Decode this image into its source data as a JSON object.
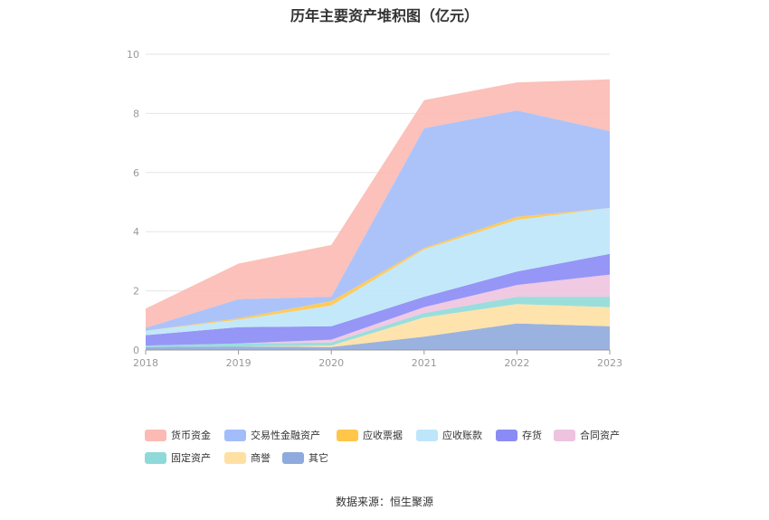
{
  "chart_title": "历年主要资产堆积图（亿元）",
  "source_label": "数据来源：恒生聚源",
  "chart_data": {
    "type": "area",
    "stacked": true,
    "title": "历年主要资产堆积图（亿元）",
    "xlabel": "",
    "ylabel": "",
    "x": [
      "2018",
      "2019",
      "2020",
      "2021",
      "2022",
      "2023"
    ],
    "ylim": [
      0,
      10
    ],
    "yticks": [
      "0",
      "2",
      "4",
      "6",
      "8",
      "10"
    ],
    "grid": true,
    "legend_position": "bottom",
    "series": [
      {
        "name": "其它",
        "color": "#8faadc",
        "values": [
          0.1,
          0.12,
          0.1,
          0.45,
          0.9,
          0.8
        ]
      },
      {
        "name": "商誉",
        "color": "#ffe0a3",
        "values": [
          0.0,
          0.0,
          0.05,
          0.65,
          0.65,
          0.65
        ]
      },
      {
        "name": "固定资产",
        "color": "#8fdad8",
        "values": [
          0.05,
          0.1,
          0.1,
          0.15,
          0.25,
          0.35
        ]
      },
      {
        "name": "合同资产",
        "color": "#eec3e0",
        "values": [
          0.0,
          0.0,
          0.1,
          0.2,
          0.4,
          0.75
        ]
      },
      {
        "name": "存货",
        "color": "#8b8bf5",
        "values": [
          0.35,
          0.55,
          0.45,
          0.35,
          0.45,
          0.7
        ]
      },
      {
        "name": "应收账款",
        "color": "#bde6fa",
        "values": [
          0.15,
          0.25,
          0.7,
          1.6,
          1.75,
          1.55
        ]
      },
      {
        "name": "应收票据",
        "color": "#ffc64a",
        "values": [
          0.0,
          0.05,
          0.15,
          0.05,
          0.1,
          0.0
        ]
      },
      {
        "name": "交易性金融资产",
        "color": "#a3bdfa",
        "values": [
          0.1,
          0.65,
          0.15,
          4.05,
          3.6,
          2.6
        ]
      },
      {
        "name": "货币资金",
        "color": "#fbbab3",
        "values": [
          0.65,
          1.2,
          1.75,
          0.95,
          0.95,
          1.75
        ]
      }
    ],
    "legend_order": [
      "货币资金",
      "交易性金融资产",
      "应收票据",
      "应收账款",
      "存货",
      "合同资产",
      "固定资产",
      "商誉",
      "其它"
    ]
  }
}
